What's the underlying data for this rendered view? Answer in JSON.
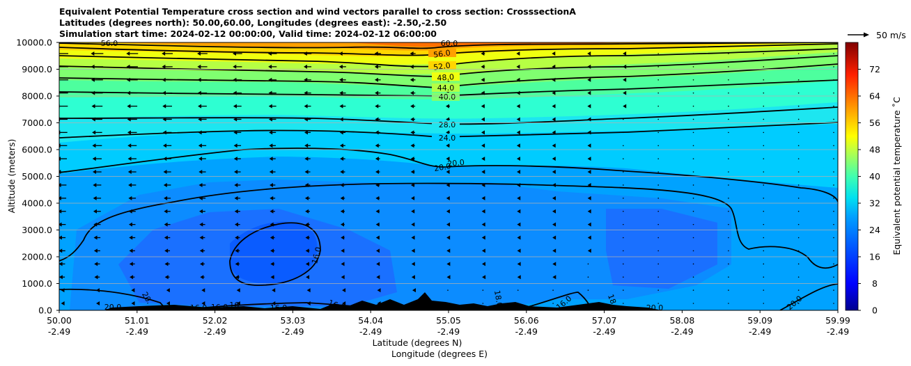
{
  "chart_data": {
    "type": "heatmap",
    "title_lines": [
      "Equivalent Potential Temperature cross section and wind vectors parallel to cross section: CrosssectionA",
      "Latitudes (degrees north): 50.00,60.00, Longitudes (degrees east): -2.50,-2.50",
      "Simulation start time: 2024-02-12 00:00:00, Valid time: 2024-02-12 06:00:00"
    ],
    "ylabel": "Altitude (meters)",
    "xlabel_lat": "Latitude (degrees N)",
    "xlabel_lon": "Longitude (degrees E)",
    "ylim": [
      0,
      10000
    ],
    "y_ticks": [
      0,
      1000,
      2000,
      3000,
      4000,
      5000,
      6000,
      7000,
      8000,
      9000,
      10000
    ],
    "y_tick_labels": [
      "0.0",
      "1000.0",
      "2000.0",
      "3000.0",
      "4000.0",
      "5000.0",
      "6000.0",
      "7000.0",
      "8000.0",
      "9000.0",
      "10000.0"
    ],
    "xlim": [
      50.0,
      59.99
    ],
    "x_ticks_lat": [
      "50.00",
      "51.01",
      "52.02",
      "53.03",
      "54.04",
      "55.05",
      "56.06",
      "57.07",
      "58.08",
      "59.09",
      "59.99"
    ],
    "x_ticks_lon": [
      "-2.49",
      "-2.49",
      "-2.49",
      "-2.49",
      "-2.49",
      "-2.49",
      "-2.49",
      "-2.49",
      "-2.49",
      "-2.49",
      "-2.49"
    ],
    "colorbar": {
      "label": "Equivalent potential temperature ˚C",
      "range": [
        0,
        80
      ],
      "ticks": [
        "0",
        "8",
        "16",
        "24",
        "32",
        "40",
        "48",
        "56",
        "64",
        "72"
      ]
    },
    "quiver_key": "50 m/s",
    "contour_levels": [
      16,
      20,
      24,
      28,
      40,
      44,
      48,
      52,
      56,
      60
    ],
    "contour_labels": [
      "56.0",
      "52.0",
      "48.0",
      "44.0",
      "40.0",
      "28.0",
      "24.0",
      "20.0",
      "20.0",
      "16.0",
      "60.0",
      "56.0"
    ],
    "contour_labels_lower": [
      "20.0",
      "20.",
      "16.0",
      "16.0",
      "16.",
      "16.0",
      "16.0",
      "18.0",
      "16.0",
      "20.0",
      "18.0",
      "20.0"
    ],
    "colors": {
      "layer_14": "#0a5cff",
      "layer_16": "#1a70ff",
      "layer_18": "#0c8cff",
      "layer_20": "#00a2ff",
      "layer_24": "#00ccff",
      "layer_28": "#1de6f0",
      "layer_32": "#2effd2",
      "layer_36": "#4dff9e",
      "layer_40": "#80ff70",
      "layer_44": "#b6ff44",
      "layer_48": "#f0ff10",
      "layer_52": "#ffd600",
      "layer_56": "#ffa000",
      "layer_60": "#ff7000",
      "layer_64": "#ff4500"
    }
  }
}
